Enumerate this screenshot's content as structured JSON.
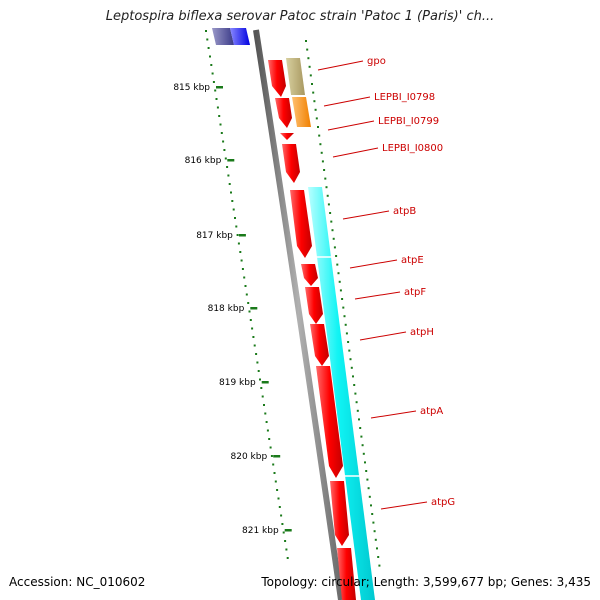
{
  "title": "Leptospira biflexa serovar Patoc strain 'Patoc 1 (Paris)' ch...",
  "footer": {
    "accession": "Accession: NC_010602",
    "summary": "Topology: circular; Length: 3,599,677 bp; Genes: 3,435"
  },
  "colors": {
    "backbone": "#7a7a7a",
    "cds_forward": "#ff0000",
    "gene_forward": "#00f0f0",
    "label_line": "#cc0000",
    "label_text": "#cc0000",
    "ticks": "#1a7a1a",
    "scale_text": "#000000"
  },
  "scale": {
    "unit": "kbp",
    "ticks": [
      "815 kbp",
      "816 kbp",
      "817 kbp",
      "818 kbp",
      "819 kbp",
      "820 kbp",
      "821 kbp"
    ]
  },
  "genes": [
    "gpo",
    "LEPBI_I0798",
    "LEPBI_I0799",
    "LEPBI_I0800",
    "atpB",
    "atpE",
    "atpF",
    "atpH",
    "atpA",
    "atpG"
  ]
}
